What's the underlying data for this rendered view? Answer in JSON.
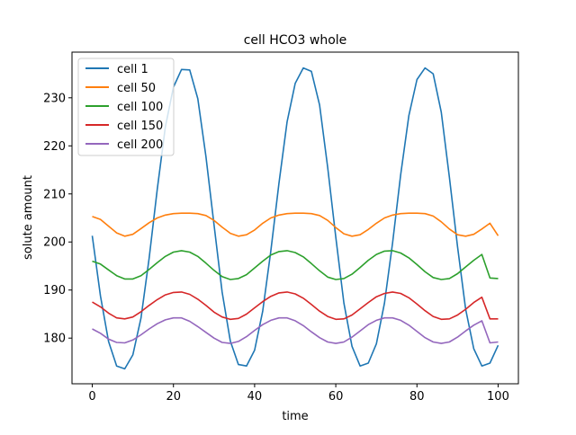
{
  "chart_data": {
    "type": "line",
    "title": "cell HCO3 whole",
    "xlabel": "time",
    "ylabel": "solute amount",
    "xlim": [
      -5,
      105
    ],
    "ylim": [
      170.5,
      239.5
    ],
    "xticks": [
      0,
      20,
      40,
      60,
      80,
      100
    ],
    "yticks": [
      180,
      190,
      200,
      210,
      220,
      230
    ],
    "grid": false,
    "legend_position": "upper-left",
    "colors": [
      "#1f77b4",
      "#ff7f0e",
      "#2ca02c",
      "#d62728",
      "#9467bd"
    ],
    "x": [
      0,
      2,
      4,
      6,
      8,
      10,
      12,
      14,
      16,
      18,
      20,
      22,
      24,
      26,
      28,
      30,
      32,
      34,
      36,
      38,
      40,
      42,
      44,
      46,
      48,
      50,
      52,
      54,
      56,
      58,
      60,
      62,
      64,
      66,
      68,
      70,
      72,
      74,
      76,
      78,
      80,
      82,
      84,
      86,
      88,
      90,
      92,
      94,
      96,
      98,
      100
    ],
    "series": [
      {
        "name": "cell 1",
        "values": [
          201.3,
          188.8,
          179.3,
          174.2,
          173.6,
          176.5,
          184.2,
          196.6,
          210.9,
          223.9,
          232.2,
          235.9,
          235.8,
          229.8,
          217.8,
          203.6,
          189.6,
          179.4,
          174.5,
          174.2,
          177.5,
          185.6,
          198.1,
          212.3,
          225.0,
          233.0,
          236.2,
          235.5,
          228.5,
          215.5,
          201.0,
          187.3,
          178.3,
          174.2,
          174.8,
          178.8,
          187.3,
          199.8,
          214.0,
          226.3,
          233.8,
          236.2,
          235.0,
          227.0,
          213.5,
          199.0,
          186.0,
          177.8,
          174.2,
          174.8,
          178.5
        ]
      },
      {
        "name": "cell 50",
        "values": [
          205.3,
          204.7,
          203.3,
          201.9,
          201.2,
          201.6,
          202.8,
          204.0,
          205.0,
          205.6,
          205.9,
          206.0,
          206.0,
          205.9,
          205.5,
          204.5,
          203.1,
          201.8,
          201.2,
          201.5,
          202.5,
          203.9,
          205.0,
          205.6,
          205.9,
          206.0,
          206.0,
          205.9,
          205.5,
          204.5,
          203.0,
          201.7,
          201.2,
          201.5,
          202.6,
          203.9,
          205.0,
          205.6,
          205.9,
          206.0,
          206.0,
          205.9,
          205.4,
          204.2,
          202.7,
          201.5,
          201.2,
          201.6,
          202.7,
          203.9,
          201.3
        ]
      },
      {
        "name": "cell 100",
        "values": [
          196.0,
          195.4,
          194.2,
          193.0,
          192.3,
          192.3,
          193.0,
          194.3,
          195.7,
          197.0,
          197.9,
          198.2,
          197.9,
          197.0,
          195.6,
          194.1,
          192.8,
          192.2,
          192.4,
          193.2,
          194.6,
          196.0,
          197.3,
          198.0,
          198.2,
          197.8,
          196.9,
          195.5,
          194.0,
          192.7,
          192.2,
          192.4,
          193.3,
          194.7,
          196.2,
          197.4,
          198.1,
          198.2,
          197.7,
          196.7,
          195.3,
          193.8,
          192.6,
          192.2,
          192.4,
          193.4,
          194.8,
          196.2,
          197.4,
          192.5,
          192.4
        ]
      },
      {
        "name": "cell 150",
        "values": [
          187.5,
          186.5,
          185.2,
          184.2,
          184.0,
          184.4,
          185.5,
          186.8,
          188.0,
          189.0,
          189.5,
          189.6,
          189.1,
          188.1,
          186.8,
          185.4,
          184.4,
          183.9,
          184.1,
          185.0,
          186.3,
          187.6,
          188.7,
          189.4,
          189.6,
          189.2,
          188.3,
          187.0,
          185.6,
          184.5,
          183.9,
          184.0,
          184.8,
          186.1,
          187.4,
          188.6,
          189.3,
          189.6,
          189.3,
          188.4,
          187.1,
          185.7,
          184.5,
          183.9,
          184.0,
          184.8,
          186.0,
          187.4,
          188.5,
          184.0,
          184.0
        ]
      },
      {
        "name": "cell 200",
        "values": [
          181.9,
          181.0,
          179.8,
          179.1,
          179.0,
          179.6,
          180.7,
          181.9,
          183.0,
          183.8,
          184.2,
          184.2,
          183.5,
          182.4,
          181.2,
          180.0,
          179.1,
          178.9,
          179.3,
          180.3,
          181.6,
          182.8,
          183.7,
          184.2,
          184.2,
          183.6,
          182.6,
          181.3,
          180.1,
          179.2,
          178.9,
          179.2,
          180.2,
          181.5,
          182.8,
          183.7,
          184.2,
          184.2,
          183.7,
          182.7,
          181.4,
          180.1,
          179.2,
          178.9,
          179.2,
          180.2,
          181.5,
          182.7,
          183.6,
          179.0,
          179.2
        ]
      }
    ]
  }
}
